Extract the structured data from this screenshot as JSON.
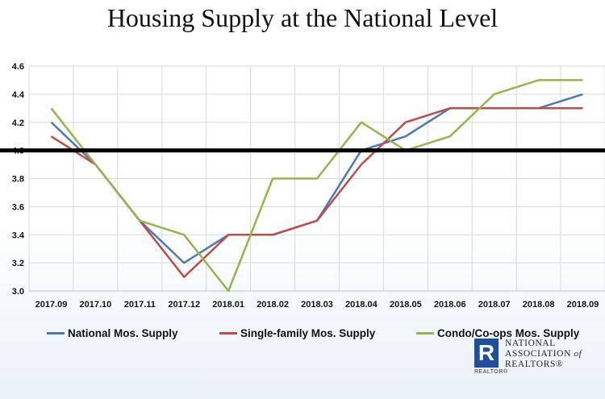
{
  "chart_data": {
    "type": "line",
    "title": "Housing Supply at the National Level",
    "categories": [
      "2017.09",
      "2017.10",
      "2017.11",
      "2017.12",
      "2018.01",
      "2018.02",
      "2018.03",
      "2018.04",
      "2018.05",
      "2018.06",
      "2018.07",
      "2018.08",
      "2018.09"
    ],
    "ylim": [
      3.0,
      4.6
    ],
    "yticks": [
      "3.0",
      "3.2",
      "3.4",
      "3.6",
      "3.8",
      "4.0",
      "4.2",
      "4.4",
      "4.6"
    ],
    "reference_line": 4.0,
    "grid": true,
    "legend_position": "bottom",
    "series": [
      {
        "name": "National Mos. Supply",
        "color": "#4a7ab5",
        "values": [
          4.2,
          3.9,
          3.5,
          3.2,
          3.4,
          3.4,
          3.5,
          4.0,
          4.1,
          4.3,
          4.3,
          4.3,
          4.4
        ]
      },
      {
        "name": "Single-family Mos. Supply",
        "color": "#bf4b48",
        "values": [
          4.1,
          3.9,
          3.5,
          3.1,
          3.4,
          3.4,
          3.5,
          3.9,
          4.2,
          4.3,
          4.3,
          4.3,
          4.3
        ]
      },
      {
        "name": "Condo/Co-ops Mos. Supply",
        "color": "#95b54c",
        "values": [
          4.3,
          3.9,
          3.5,
          3.4,
          3.0,
          3.8,
          3.8,
          4.2,
          4.0,
          4.1,
          4.4,
          4.5,
          4.5
        ]
      }
    ]
  },
  "logo": {
    "mark": "R",
    "realtor": "REALTOR®",
    "line1": "NATIONAL",
    "line2": "ASSOCIATION",
    "line2_of": "of",
    "line3": "REALTORS®"
  }
}
